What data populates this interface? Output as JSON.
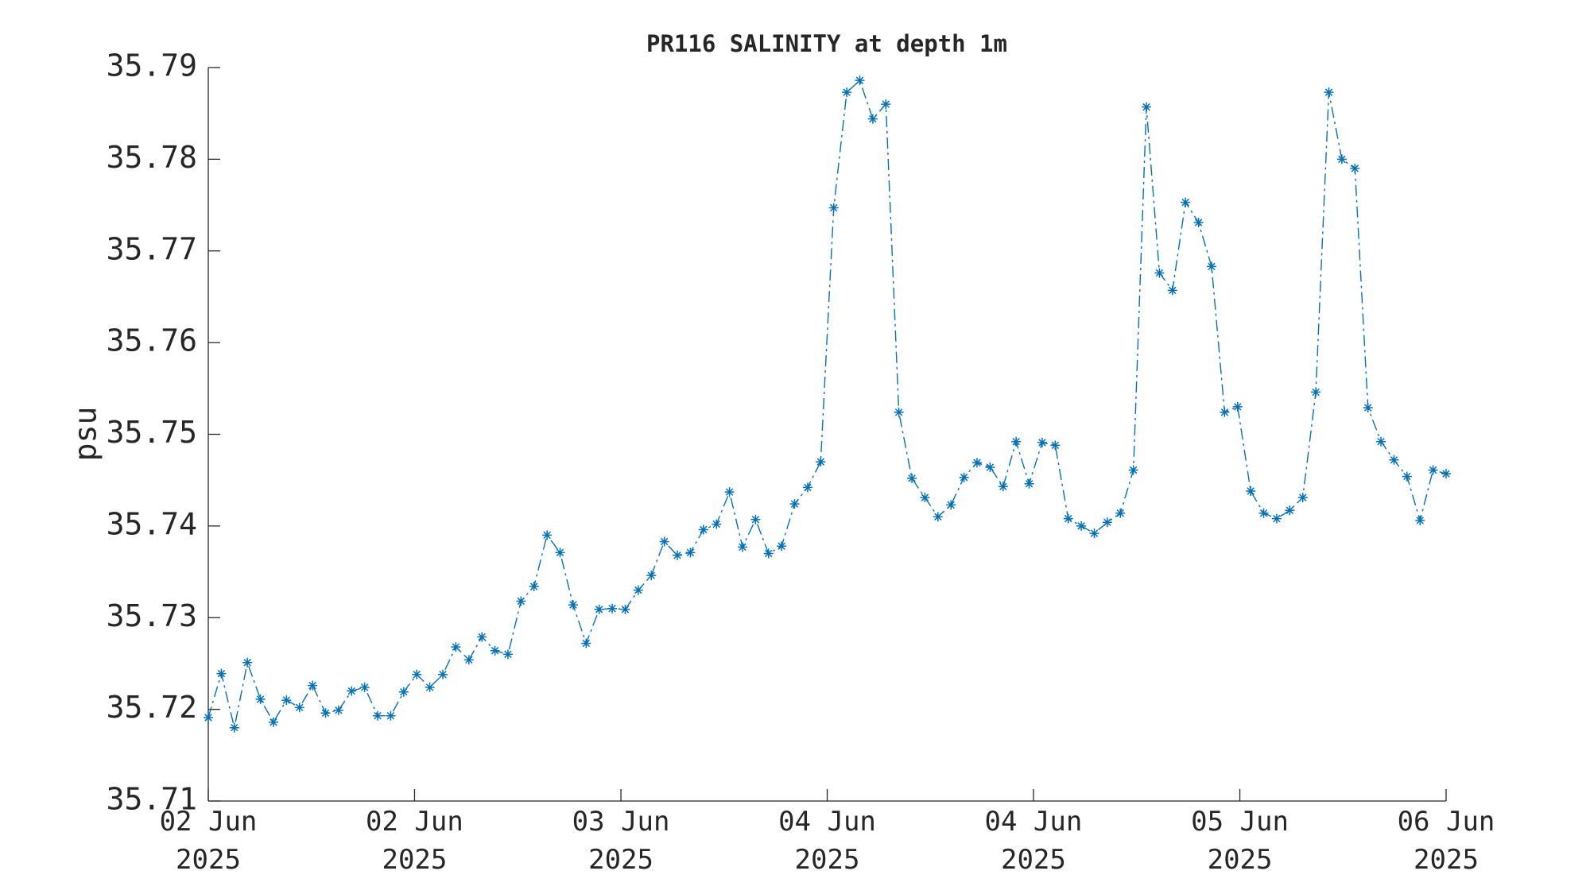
{
  "chart_data": {
    "type": "line",
    "title": "PR116 SALINITY at depth 1m",
    "ylabel": "psu",
    "x": [
      0,
      1,
      2,
      3,
      4,
      5,
      6,
      7,
      8,
      9,
      10,
      11,
      12,
      13,
      14,
      15,
      16,
      17,
      18,
      19,
      20,
      21,
      22,
      23,
      24,
      25,
      26,
      27,
      28,
      29,
      30,
      31,
      32,
      33,
      34,
      35,
      36,
      37,
      38,
      39,
      40,
      41,
      42,
      43,
      44,
      45,
      46,
      47,
      48,
      49,
      50,
      51,
      52,
      53,
      54,
      55,
      56,
      57,
      58,
      59,
      60,
      61,
      62,
      63,
      64,
      65,
      66,
      67,
      68,
      69,
      70,
      71,
      72,
      73,
      74,
      75,
      76,
      77,
      78,
      79,
      80,
      81,
      82,
      83,
      84,
      85,
      86,
      87,
      88,
      89,
      90,
      91,
      92,
      93,
      94,
      95
    ],
    "values": [
      35.7191,
      35.7239,
      35.718,
      35.7251,
      35.7211,
      35.7186,
      35.721,
      35.7202,
      35.7226,
      35.7196,
      35.7199,
      35.722,
      35.7224,
      35.7193,
      35.7193,
      35.7219,
      35.7238,
      35.7224,
      35.7238,
      35.7268,
      35.7254,
      35.7279,
      35.7264,
      35.726,
      35.7318,
      35.7334,
      35.739,
      35.7371,
      35.7314,
      35.7272,
      35.7309,
      35.731,
      35.7309,
      35.733,
      35.7346,
      35.7383,
      35.7368,
      35.7371,
      35.7396,
      35.7402,
      35.7437,
      35.7377,
      35.7407,
      35.737,
      35.7378,
      35.7424,
      35.7442,
      35.747,
      35.7747,
      35.7873,
      35.7886,
      35.7844,
      35.786,
      35.7524,
      35.7452,
      35.7431,
      35.741,
      35.7423,
      35.7453,
      35.7469,
      35.7464,
      35.7443,
      35.7492,
      35.7446,
      35.7491,
      35.7488,
      35.7408,
      35.74,
      35.7392,
      35.7404,
      35.7414,
      35.7461,
      35.7857,
      35.7676,
      35.7657,
      35.7753,
      35.7731,
      35.7683,
      35.7524,
      35.753,
      35.7438,
      35.7414,
      35.7408,
      35.7417,
      35.7431,
      35.7546,
      35.7873,
      35.78,
      35.779,
      35.7529,
      35.7492,
      35.7472,
      35.7454,
      35.7406,
      35.7461,
      35.7457
    ],
    "color": "#0072bd",
    "line_style": "dashdot",
    "marker": "*",
    "xlim": [
      0,
      95
    ],
    "xticks": [
      {
        "value": 0,
        "label": "02 Jun\n2025"
      },
      {
        "value": 15.83,
        "label": "02 Jun\n2025"
      },
      {
        "value": 31.67,
        "label": "03 Jun\n2025"
      },
      {
        "value": 47.5,
        "label": "04 Jun\n2025"
      },
      {
        "value": 63.33,
        "label": "04 Jun\n2025"
      },
      {
        "value": 79.17,
        "label": "05 Jun\n2025"
      },
      {
        "value": 95,
        "label": "06 Jun\n2025"
      }
    ],
    "ylim": [
      35.71,
      35.79
    ],
    "yticks": [
      35.71,
      35.72,
      35.73,
      35.74,
      35.75,
      35.76,
      35.77,
      35.78,
      35.79
    ],
    "grid": false
  }
}
